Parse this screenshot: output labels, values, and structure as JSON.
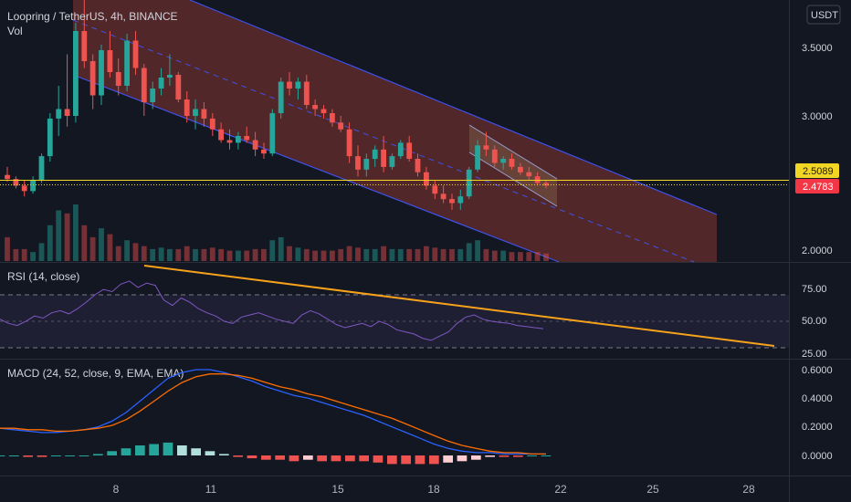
{
  "header": {
    "symbol_line": "Loopring / TetherUS, 4h, BINANCE",
    "volume_label": "Vol",
    "currency_badge": "USDT"
  },
  "price_badges": {
    "upper": "2.5089",
    "lower": "2.4783"
  },
  "colors": {
    "background": "#131722",
    "up": "#26a69a",
    "down": "#ef5350",
    "channel_fill": "#5d2a2c",
    "channel_line": "#3f51e8",
    "rsi_line": "#7e57c2",
    "rsi_band": "#1e1f33",
    "trendline": "#f7a21b",
    "macd_line": "#2962ff",
    "signal_line": "#ff6d00",
    "hist_pos": "#26a69a",
    "hist_pos_light": "#b2dfdb",
    "hist_neg": "#ef5350",
    "hist_neg_light": "#ffcdd2",
    "price_line": "#f2d624"
  },
  "chart_data": [
    {
      "type": "candlestick",
      "panel": "price",
      "title": "Loopring / TetherUS, 4h, BINANCE",
      "y_ticks": [
        "3.5000",
        "3.0000",
        "2.0000"
      ],
      "x_ticks": [
        "8",
        "11",
        "15",
        "18",
        "22",
        "25",
        "28"
      ],
      "current_prices": [
        2.5089,
        2.4783
      ],
      "candles": [
        [
          2.56,
          2.62,
          2.51,
          2.53
        ],
        [
          2.53,
          2.55,
          2.46,
          2.48
        ],
        [
          2.48,
          2.52,
          2.4,
          2.44
        ],
        [
          2.44,
          2.55,
          2.42,
          2.52
        ],
        [
          2.52,
          2.72,
          2.5,
          2.7
        ],
        [
          2.7,
          3.02,
          2.66,
          2.98
        ],
        [
          2.98,
          3.22,
          2.85,
          3.05
        ],
        [
          3.05,
          3.45,
          2.92,
          3.0
        ],
        [
          3.0,
          3.68,
          2.95,
          3.62
        ],
        [
          3.62,
          3.9,
          3.35,
          3.4
        ],
        [
          3.4,
          3.45,
          3.05,
          3.15
        ],
        [
          3.15,
          3.52,
          3.08,
          3.48
        ],
        [
          3.48,
          3.62,
          3.28,
          3.32
        ],
        [
          3.32,
          3.42,
          3.15,
          3.22
        ],
        [
          3.22,
          3.6,
          3.18,
          3.55
        ],
        [
          3.55,
          3.62,
          3.3,
          3.35
        ],
        [
          3.35,
          3.38,
          3.0,
          3.1
        ],
        [
          3.1,
          3.25,
          3.05,
          3.2
        ],
        [
          3.2,
          3.35,
          3.15,
          3.28
        ],
        [
          3.28,
          3.45,
          3.22,
          3.3
        ],
        [
          3.3,
          3.32,
          3.1,
          3.12
        ],
        [
          3.12,
          3.18,
          2.95,
          3.0
        ],
        [
          3.0,
          3.12,
          2.9,
          3.05
        ],
        [
          3.05,
          3.1,
          2.92,
          2.98
        ],
        [
          2.98,
          3.02,
          2.85,
          2.9
        ],
        [
          2.9,
          2.95,
          2.8,
          2.82
        ],
        [
          2.82,
          2.9,
          2.75,
          2.8
        ],
        [
          2.8,
          2.88,
          2.75,
          2.85
        ],
        [
          2.85,
          2.92,
          2.8,
          2.82
        ],
        [
          2.82,
          2.88,
          2.7,
          2.75
        ],
        [
          2.75,
          2.8,
          2.68,
          2.72
        ],
        [
          2.72,
          3.05,
          2.7,
          3.02
        ],
        [
          3.02,
          3.28,
          2.98,
          3.25
        ],
        [
          3.25,
          3.32,
          3.15,
          3.2
        ],
        [
          3.2,
          3.28,
          3.12,
          3.25
        ],
        [
          3.25,
          3.3,
          3.05,
          3.08
        ],
        [
          3.08,
          3.12,
          3.0,
          3.05
        ],
        [
          3.05,
          3.08,
          2.98,
          3.02
        ],
        [
          3.02,
          3.05,
          2.92,
          2.95
        ],
        [
          2.95,
          3.0,
          2.88,
          2.9
        ],
        [
          2.9,
          2.95,
          2.65,
          2.7
        ],
        [
          2.7,
          2.78,
          2.55,
          2.6
        ],
        [
          2.6,
          2.72,
          2.55,
          2.68
        ],
        [
          2.68,
          2.78,
          2.62,
          2.75
        ],
        [
          2.75,
          2.85,
          2.58,
          2.62
        ],
        [
          2.62,
          2.72,
          2.6,
          2.7
        ],
        [
          2.7,
          2.82,
          2.68,
          2.8
        ],
        [
          2.8,
          2.85,
          2.66,
          2.68
        ],
        [
          2.68,
          2.72,
          2.55,
          2.58
        ],
        [
          2.58,
          2.62,
          2.45,
          2.48
        ],
        [
          2.48,
          2.52,
          2.38,
          2.42
        ],
        [
          2.42,
          2.48,
          2.35,
          2.38
        ],
        [
          2.38,
          2.42,
          2.3,
          2.35
        ],
        [
          2.35,
          2.45,
          2.3,
          2.4
        ],
        [
          2.4,
          2.62,
          2.38,
          2.6
        ],
        [
          2.6,
          2.82,
          2.58,
          2.78
        ],
        [
          2.78,
          2.88,
          2.7,
          2.75
        ],
        [
          2.75,
          2.78,
          2.62,
          2.65
        ],
        [
          2.65,
          2.7,
          2.6,
          2.68
        ],
        [
          2.68,
          2.72,
          2.6,
          2.62
        ],
        [
          2.62,
          2.65,
          2.56,
          2.58
        ],
        [
          2.58,
          2.62,
          2.52,
          2.55
        ],
        [
          2.55,
          2.58,
          2.48,
          2.5
        ],
        [
          2.5,
          2.52,
          2.46,
          2.48
        ]
      ],
      "volume": [
        80,
        40,
        40,
        30,
        60,
        120,
        170,
        160,
        190,
        120,
        80,
        110,
        90,
        50,
        70,
        60,
        50,
        40,
        45,
        40,
        40,
        50,
        40,
        40,
        45,
        40,
        35,
        35,
        35,
        40,
        40,
        70,
        80,
        50,
        45,
        40,
        35,
        35,
        35,
        40,
        50,
        45,
        40,
        40,
        50,
        40,
        40,
        40,
        40,
        50,
        45,
        40,
        40,
        40,
        60,
        70,
        40,
        35,
        35,
        30,
        30,
        30,
        30,
        25
      ]
    },
    {
      "type": "line",
      "panel": "rsi",
      "title": "RSI (14, close)",
      "y_ticks": [
        "75.00",
        "50.00",
        "25.00"
      ],
      "band": [
        30,
        70
      ],
      "ylim": [
        23,
        93
      ],
      "values": [
        52,
        48,
        46,
        50,
        55,
        53,
        58,
        60,
        57,
        62,
        68,
        75,
        80,
        78,
        85,
        88,
        82,
        86,
        84,
        70,
        65,
        72,
        68,
        62,
        58,
        55,
        50,
        48,
        54,
        56,
        58,
        55,
        52,
        50,
        48,
        56,
        60,
        57,
        52,
        47,
        44,
        46,
        48,
        45,
        50,
        47,
        42,
        40,
        38,
        34,
        32,
        36,
        40,
        48,
        54,
        56,
        52,
        50,
        49,
        48,
        46,
        45,
        44,
        43
      ],
      "trendline": {
        "x": [
          0.08,
          0.99
        ],
        "y": [
          90,
          29
        ]
      }
    },
    {
      "type": "macd",
      "panel": "macd",
      "title": "MACD (24, 52, close, 9, EMA, EMA)",
      "y_ticks": [
        "0.6000",
        "0.4000",
        "0.2000",
        "0.0000"
      ],
      "ylim": [
        -0.05,
        0.62
      ],
      "macd": [
        0.19,
        0.18,
        0.17,
        0.16,
        0.16,
        0.17,
        0.18,
        0.2,
        0.24,
        0.3,
        0.38,
        0.46,
        0.54,
        0.58,
        0.6,
        0.6,
        0.58,
        0.55,
        0.52,
        0.48,
        0.45,
        0.42,
        0.4,
        0.37,
        0.34,
        0.31,
        0.28,
        0.24,
        0.2,
        0.16,
        0.12,
        0.08,
        0.05,
        0.03,
        0.02,
        0.02,
        0.01,
        0.01,
        0.01,
        0.01
      ],
      "signal": [
        0.19,
        0.19,
        0.18,
        0.18,
        0.17,
        0.17,
        0.18,
        0.19,
        0.21,
        0.25,
        0.31,
        0.38,
        0.45,
        0.51,
        0.55,
        0.57,
        0.57,
        0.56,
        0.54,
        0.51,
        0.48,
        0.46,
        0.43,
        0.41,
        0.38,
        0.35,
        0.32,
        0.29,
        0.26,
        0.22,
        0.18,
        0.14,
        0.1,
        0.07,
        0.05,
        0.03,
        0.02,
        0.02,
        0.01,
        0.01
      ],
      "histogram": [
        0.0,
        0.0,
        -0.01,
        -0.01,
        0.0,
        0.0,
        0.0,
        0.01,
        0.03,
        0.05,
        0.07,
        0.08,
        0.09,
        0.07,
        0.05,
        0.03,
        0.01,
        -0.01,
        -0.02,
        -0.03,
        -0.03,
        -0.04,
        -0.03,
        -0.04,
        -0.04,
        -0.04,
        -0.04,
        -0.05,
        -0.06,
        -0.06,
        -0.06,
        -0.06,
        -0.05,
        -0.04,
        -0.03,
        -0.01,
        -0.01,
        -0.01,
        0.0,
        0.0
      ]
    }
  ]
}
